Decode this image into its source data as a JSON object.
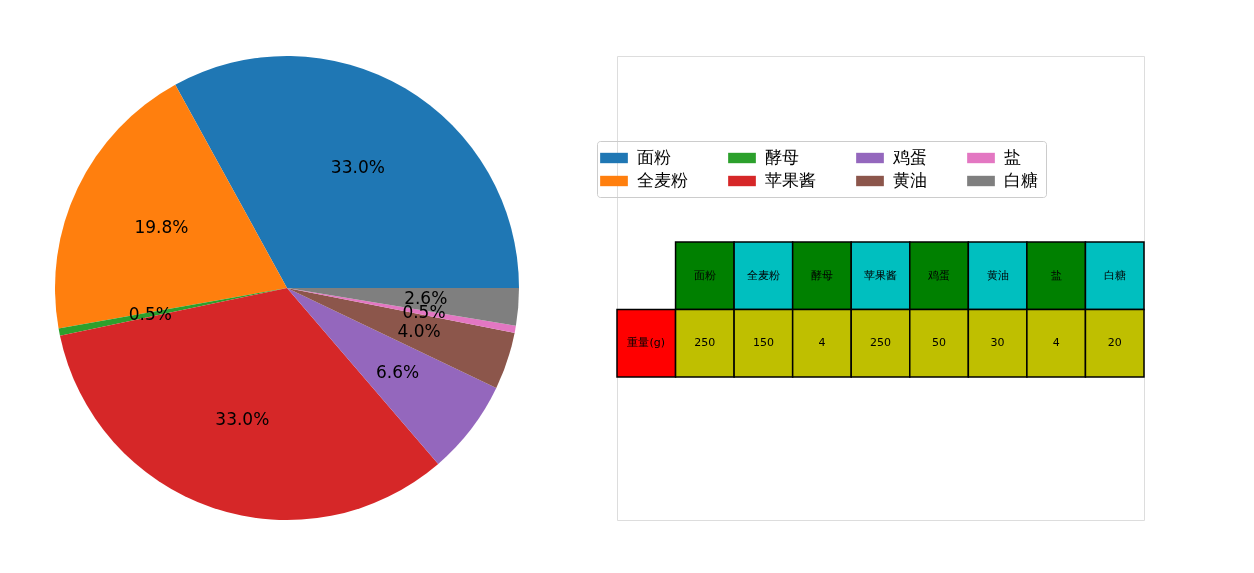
{
  "chart_data": {
    "type": "pie",
    "categories": [
      "面粉",
      "全麦粉",
      "酵母",
      "苹果酱",
      "鸡蛋",
      "黄油",
      "盐",
      "白糖"
    ],
    "values": [
      33.0,
      19.8,
      0.5,
      33.0,
      6.6,
      4.0,
      0.5,
      2.6
    ],
    "colors": [
      "#1f77b4",
      "#ff7f0e",
      "#2ca02c",
      "#d62728",
      "#9467bd",
      "#8c564b",
      "#e377c2",
      "#7f7f7f"
    ],
    "value_labels": [
      "33.0%",
      "19.8%",
      "0.5%",
      "33.0%",
      "6.6%",
      "4.0%",
      "0.5%",
      "2.6%"
    ],
    "legend": "right",
    "annotations": [
      "重量(g)",
      "250",
      "150",
      "4",
      "250",
      "50",
      "30",
      "4",
      "20"
    ]
  }
}
